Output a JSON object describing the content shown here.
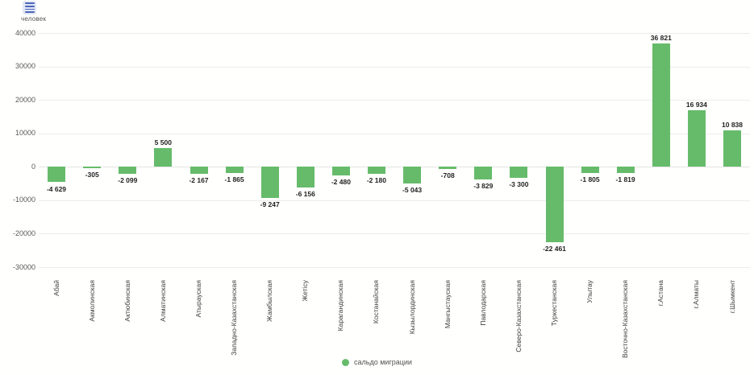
{
  "app": {
    "icons": {
      "menu": "hamburger-menu-icon"
    }
  },
  "y_axis": {
    "unit": "человек"
  },
  "legend": {
    "items": [
      {
        "label": "сальдо миграции",
        "color": "#66bb6a"
      }
    ]
  },
  "chart_data": {
    "type": "bar",
    "title": "",
    "xlabel": "",
    "ylabel": "человек",
    "series_name": "сальдо миграции",
    "bar_color": "#66bb6a",
    "grid": true,
    "legend_position": "bottom",
    "ylim": [
      -30000,
      40000
    ],
    "yticks": [
      40000,
      30000,
      20000,
      10000,
      0,
      -10000,
      -20000,
      -30000
    ],
    "categories": [
      "Абай",
      "Акмолинская",
      "Актюбинская",
      "Алматинская",
      "Атырауская",
      "Западно-Казахстанская",
      "Жамбылская",
      "Жетісу",
      "Карагандинская",
      "Костанайская",
      "Кызылординская",
      "Мангыстауская",
      "Павлодарская",
      "Северо-Казахстанская",
      "Туркестанская",
      "Улытау",
      "Восточно-Казахстанская",
      "г.Астана",
      "г.Алматы",
      "г.Шымкент"
    ],
    "values": [
      -4629,
      -305,
      -2099,
      5500,
      -2167,
      -1865,
      -9247,
      -6156,
      -2480,
      -2180,
      -5043,
      -708,
      -3829,
      -3300,
      -22461,
      -1805,
      -1819,
      36821,
      16934,
      10838
    ],
    "value_labels": [
      "-4 629",
      "-305",
      "-2 099",
      "5 500",
      "-2 167",
      "-1 865",
      "-9 247",
      "-6 156",
      "-2 480",
      "-2 180",
      "-5 043",
      "-708",
      "-3 829",
      "-3 300",
      "-22 461",
      "-1 805",
      "-1 819",
      "36 821",
      "16 934",
      "10 838"
    ]
  }
}
